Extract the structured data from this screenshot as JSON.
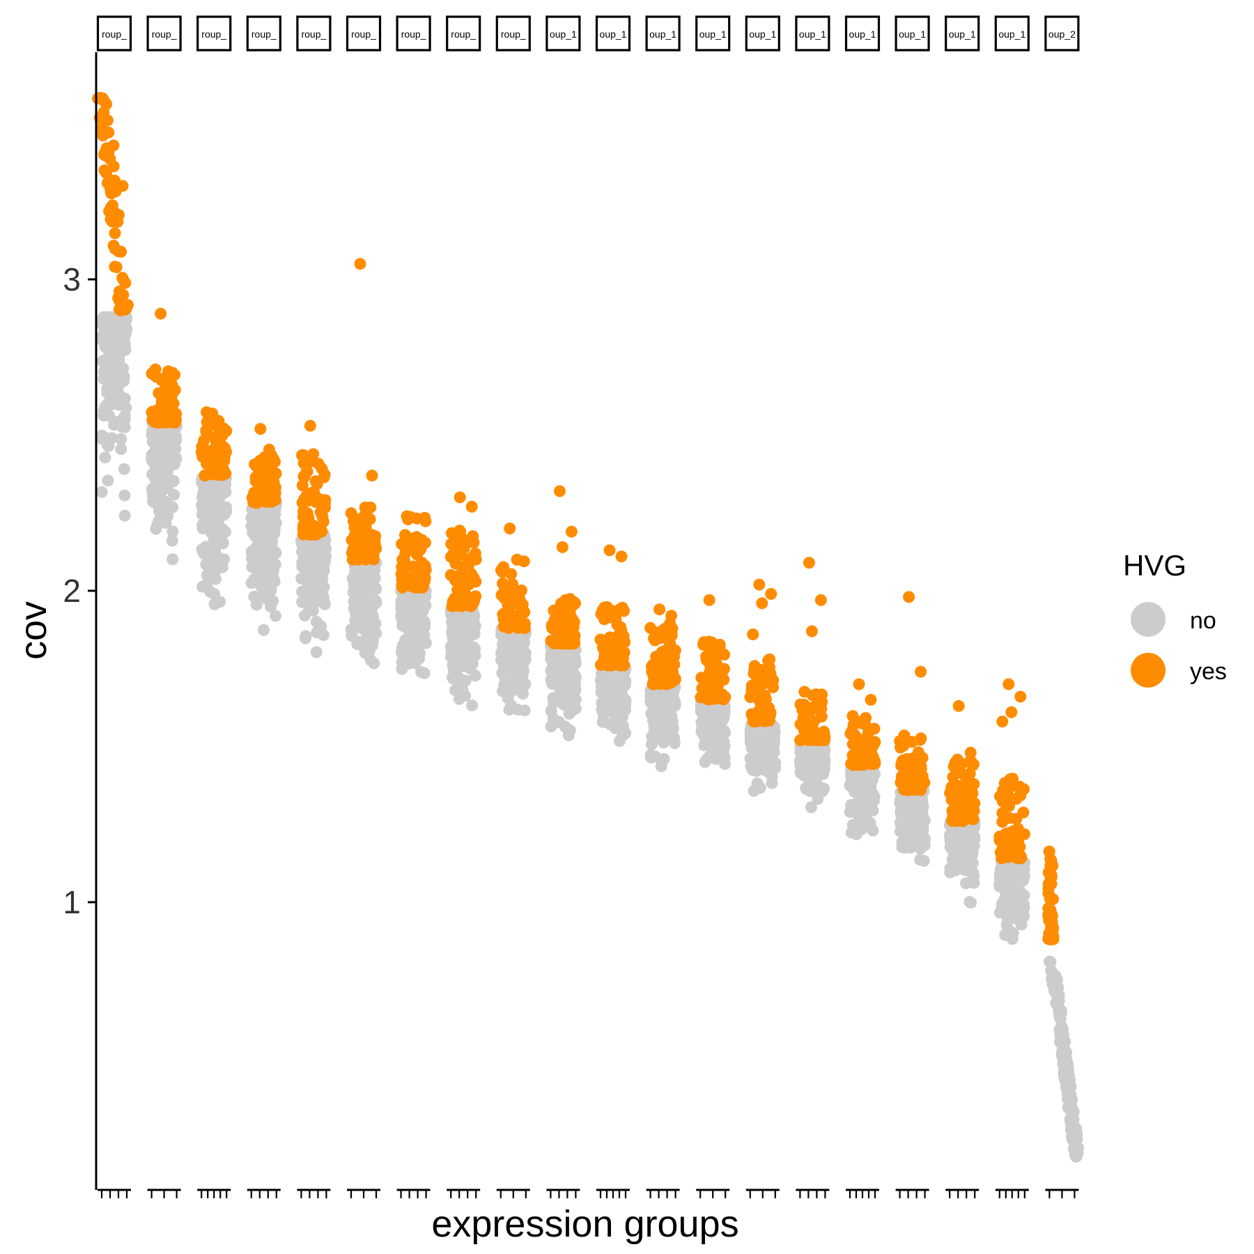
{
  "chart_data": {
    "type": "scatter",
    "title": "",
    "xlabel": "expression groups",
    "ylabel": "cov",
    "yticks": [
      1,
      2,
      3
    ],
    "ylim": [
      0.12,
      3.78
    ],
    "grid": false,
    "legend": {
      "title": "HVG",
      "position": "right",
      "entries": [
        {
          "label": "no",
          "color": "#cccccc"
        },
        {
          "label": "yes",
          "color": "#ff8c00"
        }
      ]
    },
    "facets": [
      {
        "strip_label": "roup_",
        "ticks": 4,
        "no_range": [
          2.22,
          2.88
        ],
        "yes_range": [
          2.9,
          3.64
        ],
        "outliers": [
          3.23,
          3.3,
          3.43,
          3.35
        ]
      },
      {
        "strip_label": "roup_",
        "ticks": 3,
        "no_range": [
          2.05,
          2.54
        ],
        "yes_range": [
          2.54,
          2.72
        ],
        "outliers": [
          2.89,
          2.7
        ]
      },
      {
        "strip_label": "roup_",
        "ticks": 5,
        "no_range": [
          1.94,
          2.37
        ],
        "yes_range": [
          2.37,
          2.58
        ],
        "outliers": []
      },
      {
        "strip_label": "roup_",
        "ticks": 4,
        "no_range": [
          1.85,
          2.28
        ],
        "yes_range": [
          2.28,
          2.46
        ],
        "outliers": [
          2.52
        ]
      },
      {
        "strip_label": "roup_",
        "ticks": 4,
        "no_range": [
          1.78,
          2.18
        ],
        "yes_range": [
          2.18,
          2.45
        ],
        "outliers": [
          2.53
        ]
      },
      {
        "strip_label": "roup_",
        "ticks": 3,
        "no_range": [
          1.7,
          2.1
        ],
        "yes_range": [
          2.1,
          2.27
        ],
        "outliers": [
          3.05,
          2.37
        ]
      },
      {
        "strip_label": "roup_",
        "ticks": 4,
        "no_range": [
          1.65,
          2.01
        ],
        "yes_range": [
          2.01,
          2.25
        ],
        "outliers": []
      },
      {
        "strip_label": "roup_",
        "ticks": 4,
        "no_range": [
          1.58,
          1.95
        ],
        "yes_range": [
          1.95,
          2.2
        ],
        "outliers": [
          2.3,
          2.27
        ]
      },
      {
        "strip_label": "roup_",
        "ticks": 3,
        "no_range": [
          1.55,
          1.88
        ],
        "yes_range": [
          1.88,
          2.1
        ],
        "outliers": [
          2.2
        ]
      },
      {
        "strip_label": "oup_1",
        "ticks": 4,
        "no_range": [
          1.5,
          1.83
        ],
        "yes_range": [
          1.83,
          2.0
        ],
        "outliers": [
          2.32,
          2.19,
          2.14
        ]
      },
      {
        "strip_label": "oup_1",
        "ticks": 5,
        "no_range": [
          1.46,
          1.76
        ],
        "yes_range": [
          1.76,
          1.95
        ],
        "outliers": [
          2.13,
          2.11
        ]
      },
      {
        "strip_label": "oup_1",
        "ticks": 4,
        "no_range": [
          1.4,
          1.7
        ],
        "yes_range": [
          1.7,
          1.9
        ],
        "outliers": [
          1.94,
          1.92
        ]
      },
      {
        "strip_label": "oup_1",
        "ticks": 3,
        "no_range": [
          1.36,
          1.65
        ],
        "yes_range": [
          1.65,
          1.84
        ],
        "outliers": [
          1.97
        ]
      },
      {
        "strip_label": "oup_1",
        "ticks": 3,
        "no_range": [
          1.32,
          1.58
        ],
        "yes_range": [
          1.58,
          1.78
        ],
        "outliers": [
          2.02,
          1.99,
          1.96,
          1.86
        ]
      },
      {
        "strip_label": "oup_1",
        "ticks": 4,
        "no_range": [
          1.26,
          1.52
        ],
        "yes_range": [
          1.52,
          1.68
        ],
        "outliers": [
          2.09,
          1.97,
          1.87
        ]
      },
      {
        "strip_label": "oup_1",
        "ticks": 5,
        "no_range": [
          1.18,
          1.44
        ],
        "yes_range": [
          1.44,
          1.6
        ],
        "outliers": [
          1.7,
          1.65
        ]
      },
      {
        "strip_label": "oup_1",
        "ticks": 4,
        "no_range": [
          1.1,
          1.36
        ],
        "yes_range": [
          1.36,
          1.55
        ],
        "outliers": [
          1.98,
          1.74
        ]
      },
      {
        "strip_label": "oup_1",
        "ticks": 4,
        "no_range": [
          0.99,
          1.26
        ],
        "yes_range": [
          1.26,
          1.46
        ],
        "outliers": [
          1.63,
          1.48
        ]
      },
      {
        "strip_label": "oup_1",
        "ticks": 5,
        "no_range": [
          0.83,
          1.14
        ],
        "yes_range": [
          1.14,
          1.4
        ],
        "outliers": [
          1.7,
          1.66,
          1.61,
          1.58
        ]
      },
      {
        "strip_label": "oup_2",
        "ticks": 3,
        "no_range": [
          0.18,
          0.88
        ],
        "yes_range": [
          0.88,
          1.17
        ],
        "outliers": []
      }
    ]
  }
}
